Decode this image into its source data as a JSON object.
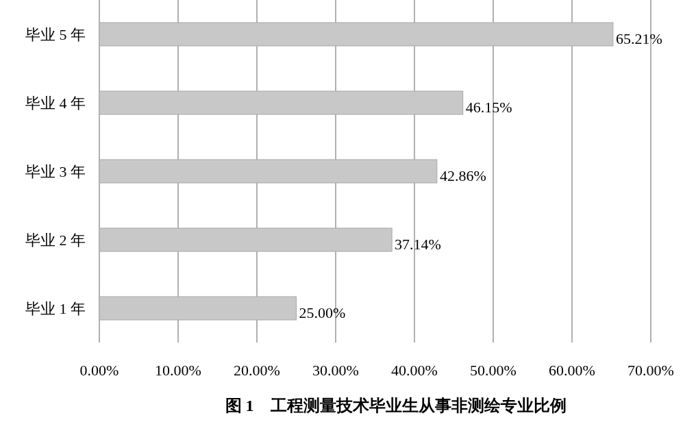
{
  "chart_data": {
    "type": "bar",
    "orientation": "horizontal",
    "title": "图 1　工程测量技术毕业生从事非测绘专业比例",
    "categories": [
      "毕业 5 年",
      "毕业 4 年",
      "毕业 3 年",
      "毕业 2 年",
      "毕业 1 年"
    ],
    "values": [
      65.21,
      46.15,
      42.86,
      37.14,
      25.0
    ],
    "value_labels": [
      "65.21%",
      "46.15%",
      "42.86%",
      "37.14%",
      "25.00%"
    ],
    "color": "#c8c8c8",
    "xlim": [
      0,
      70
    ],
    "xticks": [
      {
        "value": 0,
        "label": "0.00%"
      },
      {
        "value": 10,
        "label": "10.00%"
      },
      {
        "value": 20,
        "label": "20.00%"
      },
      {
        "value": 30,
        "label": "30.00%"
      },
      {
        "value": 40,
        "label": "40.00%"
      },
      {
        "value": 50,
        "label": "50.00%"
      },
      {
        "value": 60,
        "label": "60.00%"
      },
      {
        "value": 70,
        "label": "70.00%"
      }
    ],
    "grid": "x"
  }
}
